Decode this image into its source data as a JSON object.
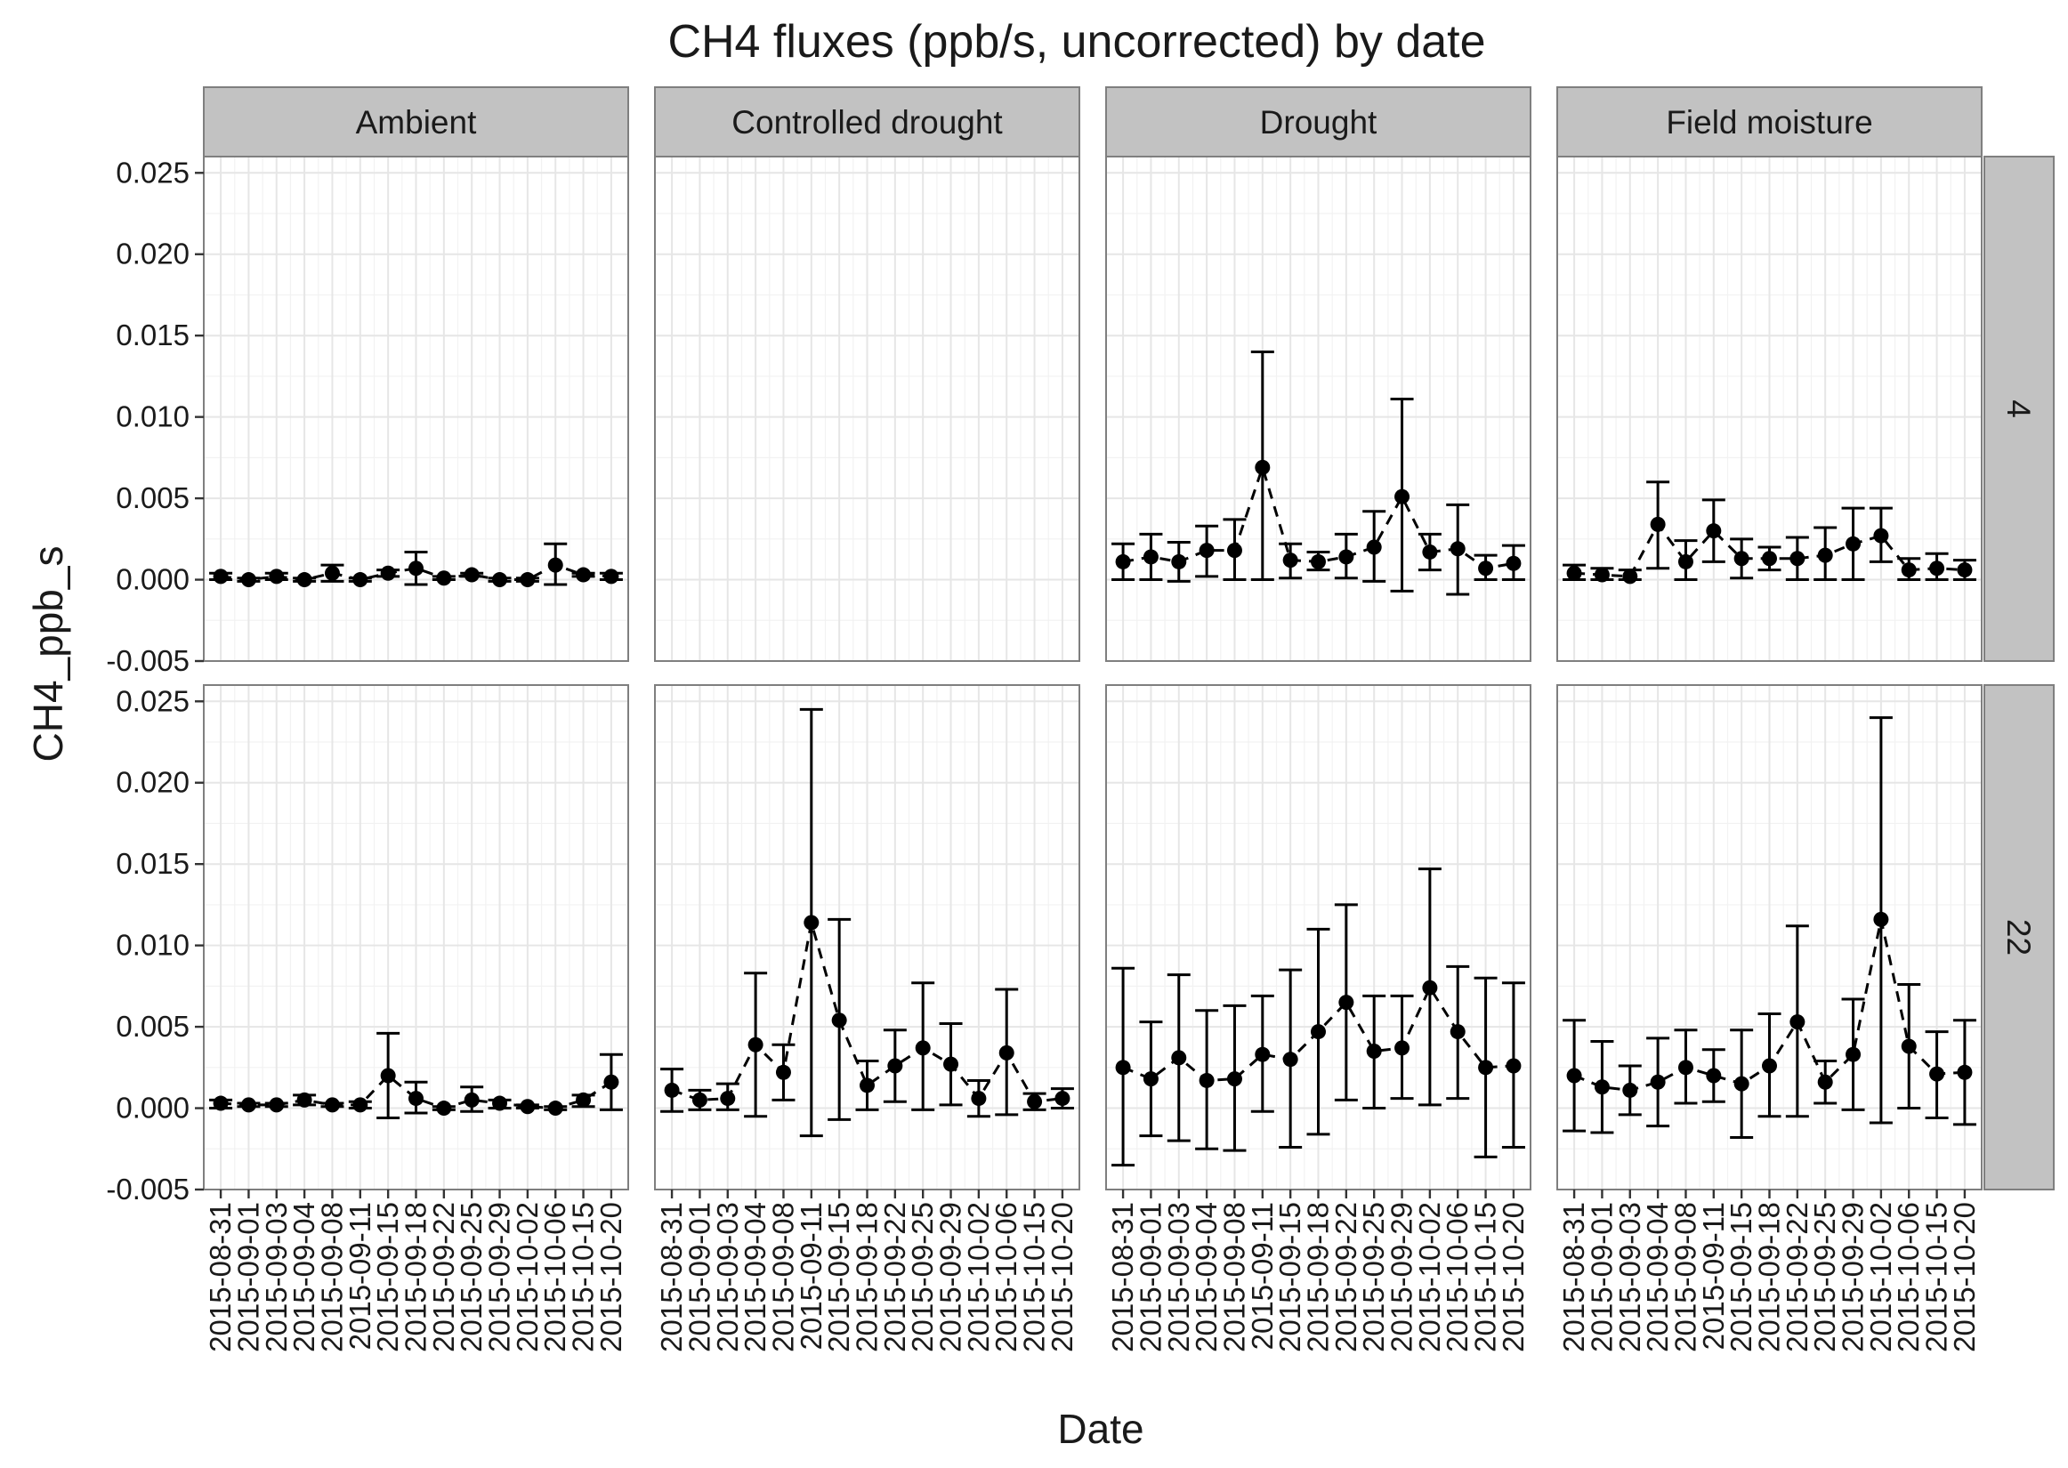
{
  "chart_data": {
    "type": "scatter",
    "title": "CH4 fluxes (ppb/s, uncorrected) by date",
    "xlabel": "Date",
    "ylabel": "CH4_ppb_s",
    "ylim": [
      -0.005,
      0.026
    ],
    "yticks": [
      "-0.005",
      "0.000",
      "0.005",
      "0.010",
      "0.015",
      "0.020",
      "0.025"
    ],
    "ytick_values": [
      -0.005,
      0,
      0.005,
      0.01,
      0.015,
      0.02,
      0.025
    ],
    "categories": [
      "2015-08-31",
      "2015-09-01",
      "2015-09-03",
      "2015-09-04",
      "2015-09-08",
      "2015-09-11",
      "2015-09-15",
      "2015-09-18",
      "2015-09-22",
      "2015-09-25",
      "2015-09-29",
      "2015-10-02",
      "2015-10-06",
      "2015-10-15",
      "2015-10-20"
    ],
    "columns": [
      "Ambient",
      "Controlled drought",
      "Drought",
      "Field moisture"
    ],
    "rows": [
      "4",
      "22"
    ],
    "line_style": "dashed",
    "panels": [
      {
        "column": "Ambient",
        "row": "4",
        "values": [
          0.0002,
          0.0,
          0.0002,
          0.0,
          0.0004,
          0.0,
          0.0004,
          0.0007,
          0.0001,
          0.0003,
          0.0,
          0.0,
          0.0009,
          0.0003,
          0.0002
        ],
        "err_low": [
          0.0,
          -0.0001,
          0.0,
          -0.0001,
          -0.0001,
          -0.0001,
          0.0002,
          -0.0003,
          0.0,
          0.0002,
          -0.0001,
          -0.0001,
          -0.0003,
          0.0002,
          0.0
        ],
        "err_high": [
          0.0004,
          0.0001,
          0.0004,
          0.0001,
          0.0009,
          0.0001,
          0.0006,
          0.0017,
          0.0002,
          0.0004,
          0.0001,
          0.0001,
          0.0022,
          0.0004,
          0.0004
        ]
      },
      {
        "column": "Controlled drought",
        "row": "4",
        "values": [],
        "err_low": [],
        "err_high": []
      },
      {
        "column": "Drought",
        "row": "4",
        "values": [
          0.0011,
          0.0014,
          0.0011,
          0.0018,
          0.0018,
          0.0069,
          0.0012,
          0.0011,
          0.0014,
          0.002,
          0.0051,
          0.0017,
          0.0019,
          0.0007,
          0.001
        ],
        "err_low": [
          0.0,
          0.0,
          -0.0001,
          0.0002,
          0.0,
          0.0,
          0.0001,
          0.0006,
          0.0001,
          -0.0001,
          -0.0007,
          0.0006,
          -0.0009,
          0.0,
          0.0
        ],
        "err_high": [
          0.0022,
          0.0028,
          0.0023,
          0.0033,
          0.0037,
          0.014,
          0.0022,
          0.0017,
          0.0028,
          0.0042,
          0.0111,
          0.0028,
          0.0046,
          0.0015,
          0.0021
        ]
      },
      {
        "column": "Field moisture",
        "row": "4",
        "values": [
          0.0004,
          0.0003,
          0.0002,
          0.0034,
          0.0011,
          0.003,
          0.0013,
          0.0013,
          0.0013,
          0.0015,
          0.0022,
          0.0027,
          0.0006,
          0.0007,
          0.0006
        ],
        "err_low": [
          0.0,
          0.0,
          0.0,
          0.0007,
          0.0,
          0.0011,
          0.0001,
          0.0006,
          0.0,
          0.0,
          0.0,
          0.0011,
          0.0,
          0.0,
          0.0
        ],
        "err_high": [
          0.0009,
          0.0007,
          0.0006,
          0.006,
          0.0024,
          0.0049,
          0.0025,
          0.002,
          0.0026,
          0.0032,
          0.0044,
          0.0044,
          0.0013,
          0.0016,
          0.0012
        ]
      },
      {
        "column": "Ambient",
        "row": "22",
        "values": [
          0.0003,
          0.0002,
          0.0002,
          0.0005,
          0.0002,
          0.0002,
          0.002,
          0.0006,
          0.0,
          0.0005,
          0.0003,
          0.0001,
          0.0,
          0.0005,
          0.0016
        ],
        "err_low": [
          0.0,
          0.0001,
          0.0001,
          0.0002,
          0.0001,
          0.0,
          -0.0006,
          -0.0003,
          -0.0001,
          -0.0002,
          0.0,
          0.0,
          -0.0001,
          0.0001,
          -0.0001
        ],
        "err_high": [
          0.0005,
          0.0003,
          0.0003,
          0.0008,
          0.0003,
          0.0004,
          0.0046,
          0.0016,
          0.0001,
          0.0013,
          0.0005,
          0.0002,
          0.0001,
          0.0008,
          0.0033
        ]
      },
      {
        "column": "Controlled drought",
        "row": "22",
        "values": [
          0.0011,
          0.0005,
          0.0006,
          0.0039,
          0.0022,
          0.0114,
          0.0054,
          0.0014,
          0.0026,
          0.0037,
          0.0027,
          0.0006,
          0.0034,
          0.0004,
          0.0006
        ],
        "err_low": [
          -0.0002,
          -0.0001,
          -0.0001,
          -0.0005,
          0.0005,
          -0.0017,
          -0.0007,
          -0.0001,
          0.0004,
          -0.0001,
          0.0002,
          -0.0005,
          -0.0004,
          -0.0001,
          0.0
        ],
        "err_high": [
          0.0024,
          0.0011,
          0.0015,
          0.0083,
          0.0039,
          0.0245,
          0.0116,
          0.0029,
          0.0048,
          0.0077,
          0.0052,
          0.0017,
          0.0073,
          0.0009,
          0.0012
        ]
      },
      {
        "column": "Drought",
        "row": "22",
        "values": [
          0.0025,
          0.0018,
          0.0031,
          0.0017,
          0.0018,
          0.0033,
          0.003,
          0.0047,
          0.0065,
          0.0035,
          0.0037,
          0.0074,
          0.0047,
          0.0025,
          0.0026
        ],
        "err_low": [
          -0.0035,
          -0.0017,
          -0.002,
          -0.0025,
          -0.0026,
          -0.0002,
          -0.0024,
          -0.0016,
          0.0005,
          0.0,
          0.0006,
          0.0002,
          0.0006,
          -0.003,
          -0.0024
        ],
        "err_high": [
          0.0086,
          0.0053,
          0.0082,
          0.006,
          0.0063,
          0.0069,
          0.0085,
          0.011,
          0.0125,
          0.0069,
          0.0069,
          0.0147,
          0.0087,
          0.008,
          0.0077
        ]
      },
      {
        "column": "Field moisture",
        "row": "22",
        "values": [
          0.002,
          0.0013,
          0.0011,
          0.0016,
          0.0025,
          0.002,
          0.0015,
          0.0026,
          0.0053,
          0.0016,
          0.0033,
          0.0116,
          0.0038,
          0.0021,
          0.0022
        ],
        "err_low": [
          -0.0014,
          -0.0015,
          -0.0004,
          -0.0011,
          0.0003,
          0.0004,
          -0.0018,
          -0.0005,
          -0.0005,
          0.0003,
          -0.0001,
          -0.0009,
          0.0,
          -0.0006,
          -0.001
        ],
        "err_high": [
          0.0054,
          0.0041,
          0.0026,
          0.0043,
          0.0048,
          0.0036,
          0.0048,
          0.0058,
          0.0112,
          0.0029,
          0.0067,
          0.024,
          0.0076,
          0.0047,
          0.0054
        ]
      }
    ]
  }
}
